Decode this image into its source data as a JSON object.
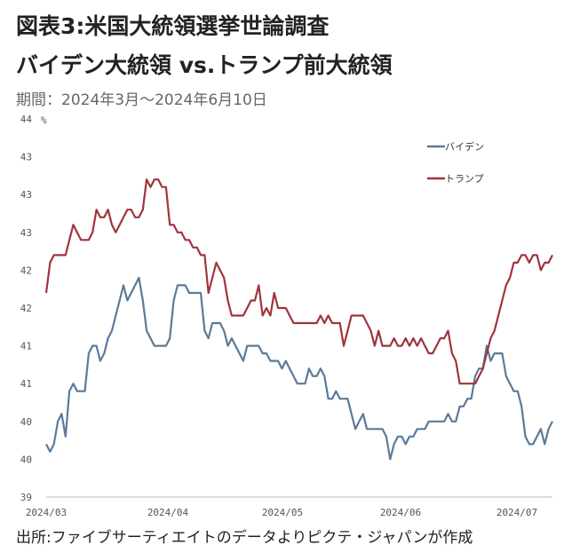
{
  "header": {
    "title_line1": "図表3:米国大統領選挙世論調査",
    "title_line2": "バイデン大統領 vs.トランプ前大統領",
    "period": "期間：2024年3月～2024年6月10日"
  },
  "footer": {
    "source": "出所:ファイブサーティエイトのデータよりピクテ・ジャパンが作成"
  },
  "chart_data": {
    "type": "line",
    "unit": "%",
    "ylim": [
      39,
      44
    ],
    "y_tick_labels": [
      "44",
      "43",
      "43",
      "43",
      "42",
      "42",
      "41",
      "41",
      "40",
      "40",
      "39"
    ],
    "x_tick_labels": [
      "2024/03",
      "2024/04",
      "2024/05",
      "2024/06",
      "2024/07"
    ],
    "legend_placement": "top-right",
    "grid": false,
    "series": [
      {
        "name": "バイデン",
        "color": "#5b7a99",
        "values": [
          39.7,
          39.6,
          39.7,
          40.0,
          40.1,
          39.8,
          40.4,
          40.5,
          40.4,
          40.4,
          40.4,
          40.9,
          41.0,
          41.0,
          40.8,
          40.9,
          41.1,
          41.2,
          41.4,
          41.6,
          41.8,
          41.6,
          41.7,
          41.8,
          41.9,
          41.6,
          41.2,
          41.1,
          41.0,
          41.0,
          41.0,
          41.0,
          41.1,
          41.6,
          41.8,
          41.8,
          41.8,
          41.7,
          41.7,
          41.7,
          41.7,
          41.2,
          41.1,
          41.3,
          41.3,
          41.3,
          41.2,
          41.0,
          41.1,
          41.0,
          40.9,
          40.8,
          41.0,
          41.0,
          41.0,
          41.0,
          40.9,
          40.9,
          40.8,
          40.8,
          40.8,
          40.7,
          40.8,
          40.7,
          40.6,
          40.5,
          40.5,
          40.5,
          40.7,
          40.6,
          40.6,
          40.7,
          40.6,
          40.3,
          40.3,
          40.4,
          40.3,
          40.3,
          40.3,
          40.1,
          39.9,
          40.0,
          40.1,
          39.9,
          39.9,
          39.9,
          39.9,
          39.9,
          39.8,
          39.5,
          39.7,
          39.8,
          39.8,
          39.7,
          39.8,
          39.8,
          39.9,
          39.9,
          39.9,
          40.0,
          40.0,
          40.0,
          40.0,
          40.0,
          40.1,
          40.0,
          40.0,
          40.2,
          40.2,
          40.3,
          40.3,
          40.6,
          40.7,
          40.7,
          41.0,
          40.8,
          40.9,
          40.9,
          40.9,
          40.6,
          40.5,
          40.4,
          40.4,
          40.2,
          39.8,
          39.7,
          39.7,
          39.8,
          39.9,
          39.7,
          39.9,
          40.0
        ]
      },
      {
        "name": "トランプ",
        "color": "#a0343c",
        "values": [
          41.7,
          42.1,
          42.2,
          42.2,
          42.2,
          42.2,
          42.4,
          42.6,
          42.5,
          42.4,
          42.4,
          42.4,
          42.5,
          42.8,
          42.7,
          42.7,
          42.8,
          42.6,
          42.5,
          42.6,
          42.7,
          42.8,
          42.8,
          42.7,
          42.7,
          42.8,
          43.2,
          43.1,
          43.2,
          43.2,
          43.1,
          43.1,
          42.6,
          42.6,
          42.5,
          42.5,
          42.4,
          42.4,
          42.3,
          42.3,
          42.2,
          42.2,
          41.7,
          41.9,
          42.1,
          42.0,
          41.9,
          41.6,
          41.4,
          41.4,
          41.4,
          41.4,
          41.5,
          41.6,
          41.6,
          41.8,
          41.4,
          41.5,
          41.4,
          41.7,
          41.5,
          41.5,
          41.5,
          41.4,
          41.3,
          41.3,
          41.3,
          41.3,
          41.3,
          41.3,
          41.3,
          41.4,
          41.3,
          41.4,
          41.3,
          41.3,
          41.3,
          41.0,
          41.2,
          41.4,
          41.4,
          41.4,
          41.4,
          41.3,
          41.2,
          41.0,
          41.2,
          41.0,
          41.0,
          41.0,
          41.1,
          41.0,
          41.0,
          41.1,
          41.0,
          41.1,
          41.0,
          41.1,
          41.0,
          40.9,
          40.9,
          41.0,
          41.1,
          41.1,
          41.2,
          40.9,
          40.8,
          40.5,
          40.5,
          40.5,
          40.5,
          40.5,
          40.6,
          40.7,
          40.9,
          41.1,
          41.2,
          41.4,
          41.6,
          41.8,
          41.9,
          42.1,
          42.1,
          42.2,
          42.2,
          42.1,
          42.2,
          42.2,
          42.0,
          42.1,
          42.1,
          42.2
        ]
      }
    ]
  }
}
